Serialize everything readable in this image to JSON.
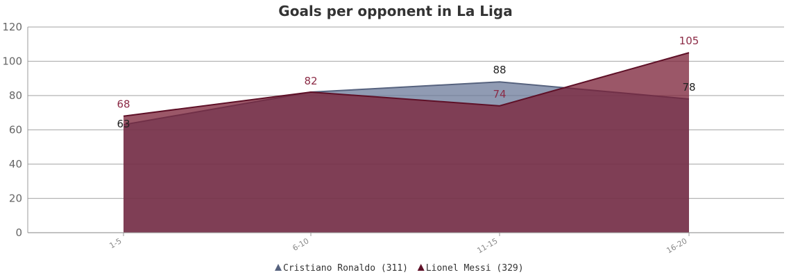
{
  "chart_data": {
    "type": "area",
    "title": "Goals per opponent in La Liga",
    "categories": [
      "1-5",
      "6-10",
      "11-15",
      "16-20"
    ],
    "ylim": [
      0,
      120
    ],
    "yticks": [
      0,
      20,
      40,
      60,
      80,
      100,
      120
    ],
    "grid": true,
    "legend_position": "bottom",
    "series": [
      {
        "name": "Cristiano Ronaldo (311)",
        "values": [
          63,
          82,
          88,
          78
        ],
        "color": "#6b7a99",
        "label_color": "#222222"
      },
      {
        "name": "Lionel Messi (329)",
        "values": [
          68,
          82,
          74,
          105
        ],
        "color": "#7a1f35",
        "label_color": "#8b2a45"
      }
    ]
  }
}
